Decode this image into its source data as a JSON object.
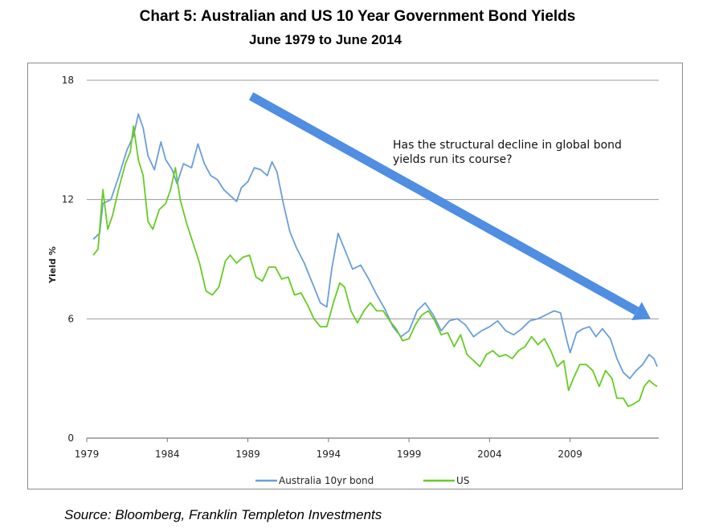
{
  "title": "Chart 5: Australian and US 10 Year Government Bond Yields",
  "subtitle": "June 1979 to June 2014",
  "source": "Source: Bloomberg, Franklin Templeton Investments",
  "chart_data": {
    "type": "line",
    "title": "Chart 5: Australian and US 10 Year Government Bond Yields",
    "subtitle": "June 1979 to June 2014",
    "xlabel": "",
    "ylabel": "Yield %",
    "xlim": [
      1979,
      2014.5
    ],
    "ylim": [
      0,
      18
    ],
    "xticks": [
      "1979",
      "1984",
      "1989",
      "1994",
      "1999",
      "2004",
      "2009"
    ],
    "xtick_values": [
      1979,
      1984,
      1989,
      1994,
      1999,
      2004,
      2009
    ],
    "yticks": [
      "0",
      "6",
      "12",
      "18"
    ],
    "ytick_values": [
      0,
      6,
      12,
      18
    ],
    "grid": "horizontal",
    "legend_position": "bottom",
    "colors": {
      "australia": "#6a9fd8",
      "us": "#66cc22",
      "arrow": "#4f8ee2"
    },
    "annotation": {
      "lines": [
        "Has the structural decline in global bond",
        "yields run its course?"
      ],
      "arrow_from": [
        1989.2,
        17.2
      ],
      "arrow_to": [
        2014.0,
        6.0
      ]
    },
    "series": [
      {
        "name": "Australia 10yr bond",
        "key": "australia",
        "points": [
          [
            1979.4,
            10.0
          ],
          [
            1979.8,
            10.3
          ],
          [
            1980.0,
            11.8
          ],
          [
            1980.5,
            12.0
          ],
          [
            1981.0,
            13.2
          ],
          [
            1981.5,
            14.5
          ],
          [
            1981.9,
            15.2
          ],
          [
            1982.2,
            16.3
          ],
          [
            1982.5,
            15.6
          ],
          [
            1982.8,
            14.2
          ],
          [
            1983.2,
            13.5
          ],
          [
            1983.6,
            14.9
          ],
          [
            1983.9,
            14.0
          ],
          [
            1984.3,
            13.5
          ],
          [
            1984.6,
            12.8
          ],
          [
            1985.0,
            13.8
          ],
          [
            1985.5,
            13.6
          ],
          [
            1985.9,
            14.8
          ],
          [
            1986.3,
            13.8
          ],
          [
            1986.7,
            13.2
          ],
          [
            1987.1,
            13.0
          ],
          [
            1987.5,
            12.5
          ],
          [
            1987.9,
            12.2
          ],
          [
            1988.3,
            11.9
          ],
          [
            1988.6,
            12.6
          ],
          [
            1989.0,
            12.9
          ],
          [
            1989.4,
            13.6
          ],
          [
            1989.8,
            13.5
          ],
          [
            1990.2,
            13.2
          ],
          [
            1990.5,
            13.9
          ],
          [
            1990.8,
            13.4
          ],
          [
            1991.2,
            11.8
          ],
          [
            1991.6,
            10.4
          ],
          [
            1992.0,
            9.6
          ],
          [
            1992.5,
            8.8
          ],
          [
            1993.0,
            7.8
          ],
          [
            1993.5,
            6.8
          ],
          [
            1993.9,
            6.6
          ],
          [
            1994.2,
            8.5
          ],
          [
            1994.6,
            10.3
          ],
          [
            1995.0,
            9.5
          ],
          [
            1995.5,
            8.5
          ],
          [
            1996.0,
            8.7
          ],
          [
            1996.5,
            8.0
          ],
          [
            1997.0,
            7.2
          ],
          [
            1997.5,
            6.5
          ],
          [
            1998.0,
            5.6
          ],
          [
            1998.5,
            5.1
          ],
          [
            1999.0,
            5.4
          ],
          [
            1999.5,
            6.4
          ],
          [
            2000.0,
            6.8
          ],
          [
            2000.5,
            6.2
          ],
          [
            2001.0,
            5.4
          ],
          [
            2001.5,
            5.9
          ],
          [
            2002.0,
            6.0
          ],
          [
            2002.5,
            5.7
          ],
          [
            2003.0,
            5.1
          ],
          [
            2003.5,
            5.4
          ],
          [
            2004.0,
            5.6
          ],
          [
            2004.5,
            5.9
          ],
          [
            2005.0,
            5.4
          ],
          [
            2005.5,
            5.2
          ],
          [
            2006.0,
            5.5
          ],
          [
            2006.5,
            5.9
          ],
          [
            2007.0,
            6.0
          ],
          [
            2007.5,
            6.2
          ],
          [
            2008.0,
            6.4
          ],
          [
            2008.4,
            6.3
          ],
          [
            2008.8,
            4.9
          ],
          [
            2009.0,
            4.3
          ],
          [
            2009.4,
            5.3
          ],
          [
            2009.8,
            5.5
          ],
          [
            2010.2,
            5.6
          ],
          [
            2010.6,
            5.1
          ],
          [
            2011.0,
            5.5
          ],
          [
            2011.5,
            5.0
          ],
          [
            2011.9,
            4.0
          ],
          [
            2012.3,
            3.3
          ],
          [
            2012.7,
            3.0
          ],
          [
            2013.1,
            3.4
          ],
          [
            2013.5,
            3.7
          ],
          [
            2013.9,
            4.2
          ],
          [
            2014.2,
            4.0
          ],
          [
            2014.4,
            3.6
          ]
        ]
      },
      {
        "name": "US",
        "key": "us",
        "points": [
          [
            1979.4,
            9.2
          ],
          [
            1979.7,
            9.5
          ],
          [
            1980.0,
            12.5
          ],
          [
            1980.3,
            10.5
          ],
          [
            1980.6,
            11.2
          ],
          [
            1981.0,
            12.6
          ],
          [
            1981.4,
            13.8
          ],
          [
            1981.7,
            14.4
          ],
          [
            1981.9,
            15.7
          ],
          [
            1982.2,
            14.0
          ],
          [
            1982.5,
            13.2
          ],
          [
            1982.8,
            10.9
          ],
          [
            1983.1,
            10.5
          ],
          [
            1983.5,
            11.5
          ],
          [
            1983.9,
            11.8
          ],
          [
            1984.2,
            12.5
          ],
          [
            1984.5,
            13.6
          ],
          [
            1984.8,
            12.0
          ],
          [
            1985.2,
            10.8
          ],
          [
            1985.6,
            9.8
          ],
          [
            1986.0,
            8.8
          ],
          [
            1986.4,
            7.4
          ],
          [
            1986.8,
            7.2
          ],
          [
            1987.2,
            7.6
          ],
          [
            1987.6,
            8.9
          ],
          [
            1987.9,
            9.2
          ],
          [
            1988.3,
            8.8
          ],
          [
            1988.7,
            9.1
          ],
          [
            1989.1,
            9.2
          ],
          [
            1989.5,
            8.1
          ],
          [
            1989.9,
            7.9
          ],
          [
            1990.3,
            8.6
          ],
          [
            1990.7,
            8.6
          ],
          [
            1991.1,
            8.0
          ],
          [
            1991.5,
            8.1
          ],
          [
            1991.9,
            7.2
          ],
          [
            1992.3,
            7.3
          ],
          [
            1992.7,
            6.7
          ],
          [
            1993.1,
            6.0
          ],
          [
            1993.5,
            5.6
          ],
          [
            1993.9,
            5.6
          ],
          [
            1994.3,
            6.8
          ],
          [
            1994.7,
            7.8
          ],
          [
            1995.0,
            7.6
          ],
          [
            1995.4,
            6.4
          ],
          [
            1995.8,
            5.8
          ],
          [
            1996.2,
            6.4
          ],
          [
            1996.6,
            6.8
          ],
          [
            1997.0,
            6.4
          ],
          [
            1997.4,
            6.4
          ],
          [
            1997.8,
            5.9
          ],
          [
            1998.2,
            5.5
          ],
          [
            1998.6,
            4.9
          ],
          [
            1999.0,
            5.0
          ],
          [
            1999.4,
            5.7
          ],
          [
            1999.8,
            6.2
          ],
          [
            2000.2,
            6.4
          ],
          [
            2000.6,
            5.9
          ],
          [
            2001.0,
            5.2
          ],
          [
            2001.4,
            5.3
          ],
          [
            2001.8,
            4.6
          ],
          [
            2002.2,
            5.2
          ],
          [
            2002.6,
            4.2
          ],
          [
            2003.0,
            3.9
          ],
          [
            2003.4,
            3.6
          ],
          [
            2003.8,
            4.2
          ],
          [
            2004.2,
            4.4
          ],
          [
            2004.6,
            4.1
          ],
          [
            2005.0,
            4.2
          ],
          [
            2005.4,
            4.0
          ],
          [
            2005.8,
            4.4
          ],
          [
            2006.2,
            4.6
          ],
          [
            2006.6,
            5.1
          ],
          [
            2007.0,
            4.7
          ],
          [
            2007.4,
            5.0
          ],
          [
            2007.8,
            4.4
          ],
          [
            2008.2,
            3.6
          ],
          [
            2008.6,
            3.9
          ],
          [
            2008.9,
            2.4
          ],
          [
            2009.2,
            3.0
          ],
          [
            2009.6,
            3.7
          ],
          [
            2010.0,
            3.7
          ],
          [
            2010.4,
            3.4
          ],
          [
            2010.8,
            2.6
          ],
          [
            2011.2,
            3.4
          ],
          [
            2011.6,
            3.0
          ],
          [
            2011.9,
            2.0
          ],
          [
            2012.3,
            2.0
          ],
          [
            2012.6,
            1.6
          ],
          [
            2012.9,
            1.7
          ],
          [
            2013.3,
            1.9
          ],
          [
            2013.6,
            2.6
          ],
          [
            2013.9,
            2.9
          ],
          [
            2014.2,
            2.7
          ],
          [
            2014.4,
            2.6
          ]
        ]
      }
    ]
  }
}
